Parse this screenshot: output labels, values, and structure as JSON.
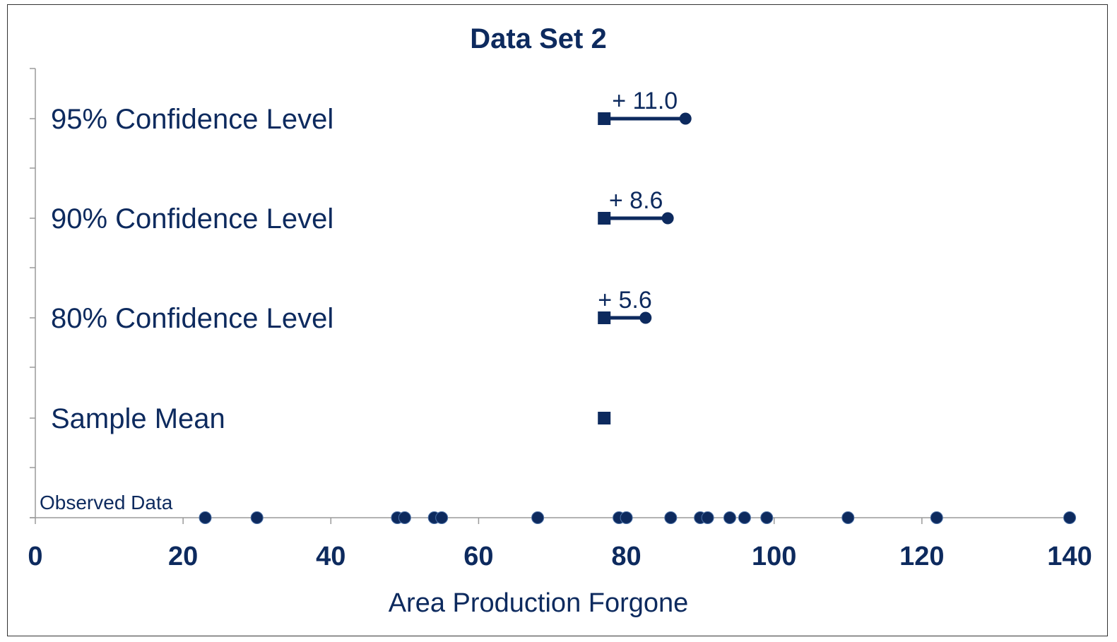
{
  "chart_data": {
    "type": "scatter",
    "title": "Data Set 2",
    "xlabel": "Area Production Forgone",
    "xlim": [
      0,
      140
    ],
    "x_ticks": [
      0,
      20,
      40,
      60,
      80,
      100,
      120,
      140
    ],
    "grid": false,
    "colors": {
      "marker": "#0d2a5e",
      "axis": "#9a9a9a",
      "text": "#0d2a5e"
    },
    "sample_mean": 77,
    "rows": [
      {
        "label": "95% Confidence Level",
        "type": "interval",
        "start": 77,
        "end": 88,
        "annotation": "+ 11.0"
      },
      {
        "label": "90% Confidence Level",
        "type": "interval",
        "start": 77,
        "end": 85.6,
        "annotation": "+ 8.6"
      },
      {
        "label": "80% Confidence Level",
        "type": "interval",
        "start": 77,
        "end": 82.6,
        "annotation": "+ 5.6"
      },
      {
        "label": "Sample Mean",
        "type": "point",
        "value": 77
      }
    ],
    "observed_label": "Observed Data",
    "observed_data": [
      23,
      30,
      49,
      50,
      54,
      55,
      68,
      79,
      80,
      86,
      90,
      91,
      94,
      96,
      99,
      110,
      122,
      140
    ]
  }
}
